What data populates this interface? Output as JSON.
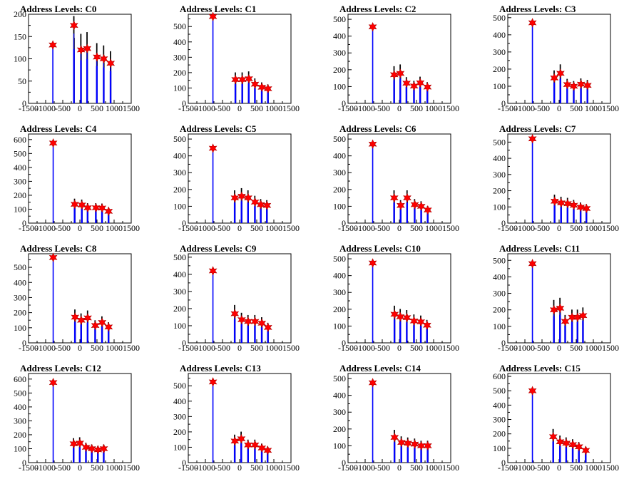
{
  "x_ticks": [
    "-1500",
    "-1000",
    "-500",
    "0",
    "500",
    "1000",
    "1500"
  ],
  "chart_data": [
    {
      "type": "bar",
      "title": "Address Levels: C0",
      "xlim": [
        -1500,
        1500
      ],
      "ylim": [
        0,
        200
      ],
      "yticks": [
        "0",
        "50",
        "100",
        "150",
        "200"
      ],
      "peaks": [
        {
          "x": -790,
          "y": 131
        },
        {
          "x": -170,
          "y": 175
        },
        {
          "x": 35,
          "y": 120
        },
        {
          "x": 215,
          "y": 123
        },
        {
          "x": 500,
          "y": 104
        },
        {
          "x": 700,
          "y": 100
        },
        {
          "x": 900,
          "y": 90
        }
      ]
    },
    {
      "type": "bar",
      "title": "Address Levels: C1",
      "xlim": [
        -1500,
        1500
      ],
      "ylim": [
        0,
        580
      ],
      "yticks": [
        "0",
        "100",
        "200",
        "300",
        "400",
        "500"
      ],
      "peaks": [
        {
          "x": -780,
          "y": 565
        },
        {
          "x": -120,
          "y": 155
        },
        {
          "x": 80,
          "y": 155
        },
        {
          "x": 270,
          "y": 160
        },
        {
          "x": 450,
          "y": 125
        },
        {
          "x": 650,
          "y": 105
        },
        {
          "x": 830,
          "y": 95
        }
      ]
    },
    {
      "type": "bar",
      "title": "Address Levels: C2",
      "xlim": [
        -1500,
        1500
      ],
      "ylim": [
        0,
        530
      ],
      "yticks": [
        "0",
        "100",
        "200",
        "300",
        "400",
        "500"
      ],
      "peaks": [
        {
          "x": -780,
          "y": 455
        },
        {
          "x": -150,
          "y": 170
        },
        {
          "x": 30,
          "y": 178
        },
        {
          "x": 210,
          "y": 120
        },
        {
          "x": 430,
          "y": 103
        },
        {
          "x": 610,
          "y": 122
        },
        {
          "x": 820,
          "y": 97
        }
      ]
    },
    {
      "type": "bar",
      "title": "Address Levels: C3",
      "xlim": [
        -1500,
        1500
      ],
      "ylim": [
        0,
        520
      ],
      "yticks": [
        "0",
        "100",
        "200",
        "300",
        "400",
        "500"
      ],
      "peaks": [
        {
          "x": -780,
          "y": 470
        },
        {
          "x": -140,
          "y": 148
        },
        {
          "x": 40,
          "y": 175
        },
        {
          "x": 240,
          "y": 110
        },
        {
          "x": 430,
          "y": 100
        },
        {
          "x": 640,
          "y": 112
        },
        {
          "x": 830,
          "y": 105
        }
      ]
    },
    {
      "type": "bar",
      "title": "Address Levels: C4",
      "xlim": [
        -1500,
        1500
      ],
      "ylim": [
        0,
        640
      ],
      "yticks": [
        "0",
        "100",
        "200",
        "300",
        "400",
        "500",
        "600"
      ],
      "peaks": [
        {
          "x": -780,
          "y": 575
        },
        {
          "x": -150,
          "y": 135
        },
        {
          "x": 60,
          "y": 130
        },
        {
          "x": 230,
          "y": 110
        },
        {
          "x": 470,
          "y": 110
        },
        {
          "x": 650,
          "y": 108
        },
        {
          "x": 840,
          "y": 85
        }
      ]
    },
    {
      "type": "bar",
      "title": "Address Levels: C5",
      "xlim": [
        -1500,
        1500
      ],
      "ylim": [
        0,
        530
      ],
      "yticks": [
        "0",
        "100",
        "200",
        "300",
        "400",
        "500"
      ],
      "peaks": [
        {
          "x": -780,
          "y": 445
        },
        {
          "x": -140,
          "y": 150
        },
        {
          "x": 60,
          "y": 160
        },
        {
          "x": 250,
          "y": 150
        },
        {
          "x": 450,
          "y": 125
        },
        {
          "x": 620,
          "y": 110
        },
        {
          "x": 800,
          "y": 105
        }
      ]
    },
    {
      "type": "bar",
      "title": "Address Levels: C6",
      "xlim": [
        -1500,
        1500
      ],
      "ylim": [
        0,
        530
      ],
      "yticks": [
        "0",
        "100",
        "200",
        "300",
        "400",
        "500"
      ],
      "peaks": [
        {
          "x": -780,
          "y": 470
        },
        {
          "x": -150,
          "y": 150
        },
        {
          "x": 40,
          "y": 105
        },
        {
          "x": 230,
          "y": 150
        },
        {
          "x": 450,
          "y": 110
        },
        {
          "x": 640,
          "y": 100
        },
        {
          "x": 830,
          "y": 78
        }
      ]
    },
    {
      "type": "bar",
      "title": "Address Levels: C7",
      "xlim": [
        -1500,
        1500
      ],
      "ylim": [
        0,
        550
      ],
      "yticks": [
        "0",
        "100",
        "200",
        "300",
        "400",
        "500"
      ],
      "peaks": [
        {
          "x": -780,
          "y": 520
        },
        {
          "x": -130,
          "y": 135
        },
        {
          "x": 60,
          "y": 125
        },
        {
          "x": 250,
          "y": 120
        },
        {
          "x": 430,
          "y": 110
        },
        {
          "x": 630,
          "y": 98
        },
        {
          "x": 800,
          "y": 90
        }
      ]
    },
    {
      "type": "bar",
      "title": "Address Levels: C8",
      "xlim": [
        -1500,
        1500
      ],
      "ylim": [
        0,
        590
      ],
      "yticks": [
        "0",
        "100",
        "200",
        "300",
        "400",
        "500"
      ],
      "peaks": [
        {
          "x": -780,
          "y": 565
        },
        {
          "x": -140,
          "y": 170
        },
        {
          "x": 40,
          "y": 150
        },
        {
          "x": 230,
          "y": 165
        },
        {
          "x": 450,
          "y": 115
        },
        {
          "x": 650,
          "y": 135
        },
        {
          "x": 840,
          "y": 105
        }
      ]
    },
    {
      "type": "bar",
      "title": "Address Levels: C9",
      "xlim": [
        -1500,
        1500
      ],
      "ylim": [
        0,
        520
      ],
      "yticks": [
        "0",
        "100",
        "200",
        "300",
        "400",
        "500"
      ],
      "peaks": [
        {
          "x": -780,
          "y": 420
        },
        {
          "x": -140,
          "y": 170
        },
        {
          "x": 60,
          "y": 135
        },
        {
          "x": 250,
          "y": 125
        },
        {
          "x": 450,
          "y": 125
        },
        {
          "x": 650,
          "y": 115
        },
        {
          "x": 830,
          "y": 90
        }
      ]
    },
    {
      "type": "bar",
      "title": "Address Levels: C10",
      "xlim": [
        -1500,
        1500
      ],
      "ylim": [
        0,
        530
      ],
      "yticks": [
        "0",
        "100",
        "200",
        "300",
        "400",
        "500"
      ],
      "peaks": [
        {
          "x": -780,
          "y": 475
        },
        {
          "x": -140,
          "y": 170
        },
        {
          "x": 30,
          "y": 155
        },
        {
          "x": 220,
          "y": 150
        },
        {
          "x": 430,
          "y": 130
        },
        {
          "x": 630,
          "y": 125
        },
        {
          "x": 810,
          "y": 105
        }
      ]
    },
    {
      "type": "bar",
      "title": "Address Levels: C11",
      "xlim": [
        -1500,
        1500
      ],
      "ylim": [
        0,
        540
      ],
      "yticks": [
        "0",
        "100",
        "200",
        "300",
        "400",
        "500"
      ],
      "peaks": [
        {
          "x": -780,
          "y": 480
        },
        {
          "x": -150,
          "y": 200
        },
        {
          "x": 30,
          "y": 210
        },
        {
          "x": 180,
          "y": 130
        },
        {
          "x": 380,
          "y": 155
        },
        {
          "x": 540,
          "y": 155
        },
        {
          "x": 700,
          "y": 165
        }
      ]
    },
    {
      "type": "bar",
      "title": "Address Levels: C12",
      "xlim": [
        -1500,
        1500
      ],
      "ylim": [
        0,
        640
      ],
      "yticks": [
        "0",
        "100",
        "200",
        "300",
        "400",
        "500",
        "600"
      ],
      "peaks": [
        {
          "x": -780,
          "y": 575
        },
        {
          "x": -180,
          "y": 135
        },
        {
          "x": 0,
          "y": 140
        },
        {
          "x": 180,
          "y": 110
        },
        {
          "x": 350,
          "y": 100
        },
        {
          "x": 530,
          "y": 92
        },
        {
          "x": 700,
          "y": 100
        }
      ]
    },
    {
      "type": "bar",
      "title": "Address Levels: C13",
      "xlim": [
        -1500,
        1500
      ],
      "ylim": [
        0,
        580
      ],
      "yticks": [
        "0",
        "100",
        "200",
        "300",
        "400",
        "500"
      ],
      "peaks": [
        {
          "x": -780,
          "y": 525
        },
        {
          "x": -140,
          "y": 140
        },
        {
          "x": 50,
          "y": 155
        },
        {
          "x": 250,
          "y": 115
        },
        {
          "x": 450,
          "y": 115
        },
        {
          "x": 650,
          "y": 95
        },
        {
          "x": 820,
          "y": 80
        }
      ]
    },
    {
      "type": "bar",
      "title": "Address Levels: C14",
      "xlim": [
        -1500,
        1500
      ],
      "ylim": [
        0,
        530
      ],
      "yticks": [
        "0",
        "100",
        "200",
        "300",
        "400",
        "500"
      ],
      "peaks": [
        {
          "x": -780,
          "y": 475
        },
        {
          "x": -140,
          "y": 150
        },
        {
          "x": 60,
          "y": 120
        },
        {
          "x": 250,
          "y": 115
        },
        {
          "x": 450,
          "y": 110
        },
        {
          "x": 640,
          "y": 100
        },
        {
          "x": 830,
          "y": 100
        }
      ]
    },
    {
      "type": "bar",
      "title": "Address Levels: C15",
      "xlim": [
        -1500,
        1500
      ],
      "ylim": [
        0,
        620
      ],
      "yticks": [
        "0",
        "100",
        "200",
        "300",
        "400",
        "500",
        "600"
      ],
      "peaks": [
        {
          "x": -780,
          "y": 500
        },
        {
          "x": -170,
          "y": 180
        },
        {
          "x": 30,
          "y": 145
        },
        {
          "x": 210,
          "y": 135
        },
        {
          "x": 400,
          "y": 125
        },
        {
          "x": 580,
          "y": 110
        },
        {
          "x": 780,
          "y": 85
        }
      ]
    }
  ],
  "colors": {
    "histogram": "#0000ff",
    "histogram_edge": "#000000",
    "marker": "#ff0000",
    "axis": "#000000"
  }
}
